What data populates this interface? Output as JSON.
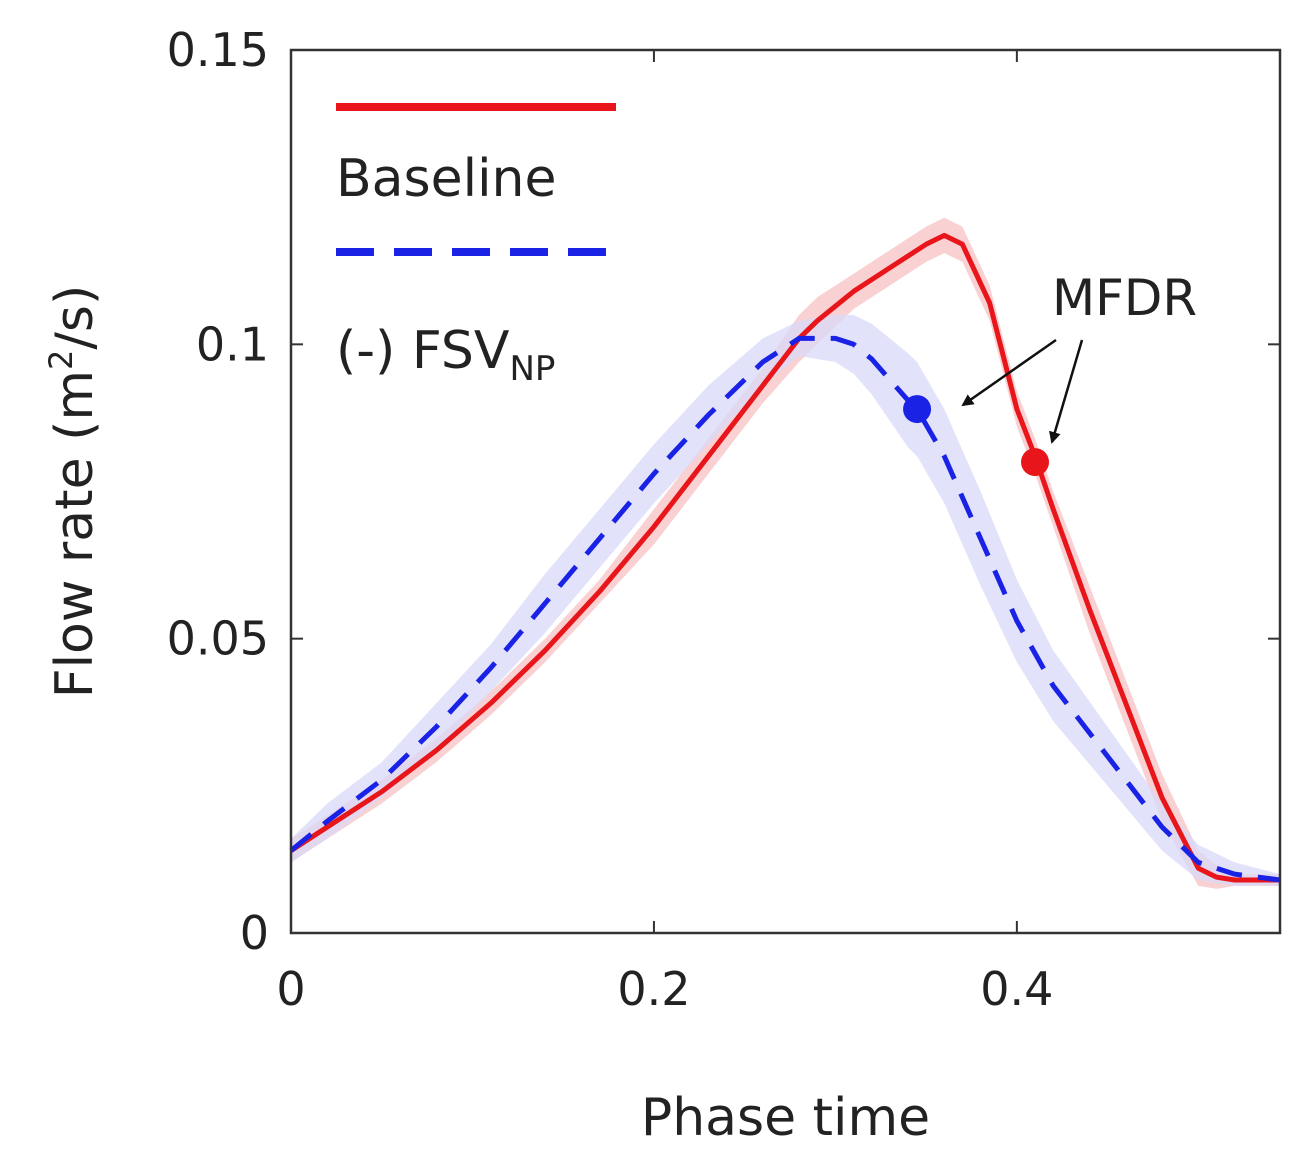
{
  "chart_data": {
    "type": "line",
    "title": "",
    "xlabel": "Phase time",
    "ylabel": {
      "prefix": "Flow rate (m",
      "sup": "2",
      "suffix": "/s)"
    },
    "xlim": [
      0,
      0.545
    ],
    "ylim": [
      0,
      0.15
    ],
    "xticks": [
      0,
      0.2,
      0.4
    ],
    "xtick_labels": [
      "0",
      "0.2",
      "0.4"
    ],
    "yticks": [
      0,
      0.05,
      0.1,
      0.15
    ],
    "ytick_labels": [
      "0",
      "0.05",
      "0.1",
      "0.15"
    ],
    "grid": false,
    "legend_position": "top-left",
    "series": [
      {
        "name": "Baseline",
        "legend_label": "Baseline",
        "color": "#e8161b",
        "band_color": "#f7c2c3",
        "style": "solid",
        "x": [
          0,
          0.02,
          0.05,
          0.08,
          0.11,
          0.14,
          0.17,
          0.2,
          0.23,
          0.26,
          0.28,
          0.29,
          0.31,
          0.33,
          0.35,
          0.36,
          0.37,
          0.385,
          0.4,
          0.41,
          0.42,
          0.44,
          0.46,
          0.48,
          0.5,
          0.51,
          0.52,
          0.545
        ],
        "y": [
          0.014,
          0.018,
          0.024,
          0.031,
          0.039,
          0.048,
          0.058,
          0.069,
          0.081,
          0.093,
          0.101,
          0.104,
          0.109,
          0.113,
          0.117,
          0.1185,
          0.117,
          0.107,
          0.089,
          0.081,
          0.072,
          0.055,
          0.039,
          0.023,
          0.011,
          0.0095,
          0.009,
          0.009
        ],
        "band": [
          0.002,
          0.002,
          0.002,
          0.002,
          0.002,
          0.002,
          0.002,
          0.003,
          0.003,
          0.003,
          0.004,
          0.004,
          0.003,
          0.003,
          0.003,
          0.003,
          0.003,
          0.003,
          0.003,
          0.003,
          0.003,
          0.004,
          0.004,
          0.004,
          0.003,
          0.002,
          0.001,
          0.001
        ],
        "marker": {
          "label": "MFDR",
          "x": 0.41,
          "y": 0.08
        }
      },
      {
        "name": "(-) FSV_NP",
        "legend_label": "(-) FSV",
        "legend_sub": "NP",
        "color": "#1a22e6",
        "band_color": "#d8daf8",
        "style": "dashed",
        "x": [
          0,
          0.02,
          0.05,
          0.08,
          0.11,
          0.14,
          0.17,
          0.2,
          0.23,
          0.26,
          0.28,
          0.3,
          0.31,
          0.32,
          0.33,
          0.34,
          0.345,
          0.36,
          0.38,
          0.4,
          0.42,
          0.45,
          0.48,
          0.5,
          0.52,
          0.545
        ],
        "y": [
          0.014,
          0.019,
          0.026,
          0.035,
          0.045,
          0.056,
          0.067,
          0.078,
          0.088,
          0.097,
          0.101,
          0.101,
          0.1,
          0.0975,
          0.094,
          0.0905,
          0.089,
          0.081,
          0.067,
          0.053,
          0.042,
          0.03,
          0.018,
          0.012,
          0.01,
          0.009
        ],
        "band": [
          0.002,
          0.003,
          0.003,
          0.004,
          0.004,
          0.005,
          0.005,
          0.005,
          0.005,
          0.004,
          0.003,
          0.004,
          0.005,
          0.006,
          0.007,
          0.008,
          0.008,
          0.008,
          0.008,
          0.007,
          0.006,
          0.005,
          0.004,
          0.003,
          0.002,
          0.001
        ],
        "marker": {
          "label": "MFDR",
          "x": 0.345,
          "y": 0.089
        }
      }
    ],
    "annotations": [
      {
        "text": "MFDR"
      }
    ]
  }
}
